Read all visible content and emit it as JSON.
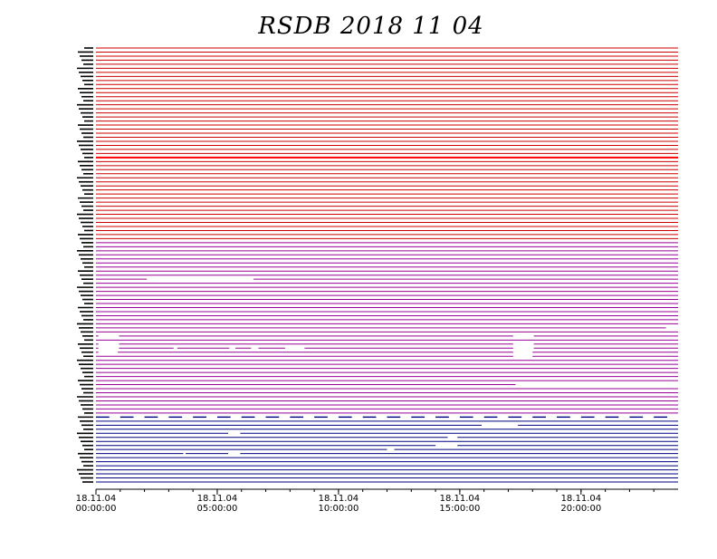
{
  "chart_data": {
    "type": "timeline",
    "title": "RSDB  2018  11  04",
    "xlabel": "",
    "ylabel": "",
    "x_range": [
      "18.11.04 00:00:00",
      "18.11.05 00:00:00"
    ],
    "x_ticks": [
      {
        "date": "18.11.04",
        "time": "00:00:00"
      },
      {
        "date": "18.11.04",
        "time": "05:00:00"
      },
      {
        "date": "18.11.04",
        "time": "10:00:00"
      },
      {
        "date": "18.11.04",
        "time": "15:00:00"
      },
      {
        "date": "18.11.04",
        "time": "20:00:00"
      }
    ],
    "minor_tick_interval_hours": 1,
    "groups": [
      {
        "color": "#cc0000",
        "rows": 48,
        "highlight_row": 27,
        "highlight_color": "#ff0000"
      },
      {
        "color": "#990099",
        "rows": 43
      },
      {
        "color": "#000080",
        "rows": 17
      }
    ],
    "gaps": [
      {
        "row": 57,
        "start_hour": 2.1,
        "end_hour": 6.5
      },
      {
        "row": 69,
        "start_hour": 23.5,
        "end_hour": 24.0
      },
      {
        "row": 71,
        "start_hour": 0.1,
        "end_hour": 0.95
      },
      {
        "row": 71,
        "start_hour": 17.2,
        "end_hour": 18.05
      },
      {
        "row": 73,
        "start_hour": 0.1,
        "end_hour": 0.95
      },
      {
        "row": 73,
        "start_hour": 17.2,
        "end_hour": 18.05
      },
      {
        "row": 74,
        "start_hour": 0.1,
        "end_hour": 0.95
      },
      {
        "row": 74,
        "start_hour": 3.2,
        "end_hour": 3.35
      },
      {
        "row": 74,
        "start_hour": 5.5,
        "end_hour": 5.75
      },
      {
        "row": 74,
        "start_hour": 6.4,
        "end_hour": 6.7
      },
      {
        "row": 74,
        "start_hour": 7.8,
        "end_hour": 8.6
      },
      {
        "row": 74,
        "start_hour": 17.2,
        "end_hour": 18.05
      },
      {
        "row": 75,
        "start_hour": 0.1,
        "end_hour": 0.9
      },
      {
        "row": 75,
        "start_hour": 17.2,
        "end_hour": 18.0
      },
      {
        "row": 76,
        "start_hour": 17.2,
        "end_hour": 18.0
      },
      {
        "row": 83,
        "start_hour": 17.3,
        "end_hour": 24.0
      },
      {
        "row": 93,
        "start_hour": 15.9,
        "end_hour": 17.4
      },
      {
        "row": 95,
        "start_hour": 5.45,
        "end_hour": 5.95
      },
      {
        "row": 96,
        "start_hour": 14.5,
        "end_hour": 14.9
      },
      {
        "row": 98,
        "start_hour": 14.0,
        "end_hour": 14.9
      },
      {
        "row": 100,
        "start_hour": 5.45,
        "end_hour": 5.95
      },
      {
        "row": 99,
        "start_hour": 12.0,
        "end_hour": 12.3
      },
      {
        "row": 100,
        "start_hour": 3.6,
        "end_hour": 3.7
      }
    ],
    "dashed_row": {
      "row": 91,
      "dash_hours": 0.55,
      "gap_hours": 0.45
    },
    "grid": false,
    "legend": "none"
  }
}
